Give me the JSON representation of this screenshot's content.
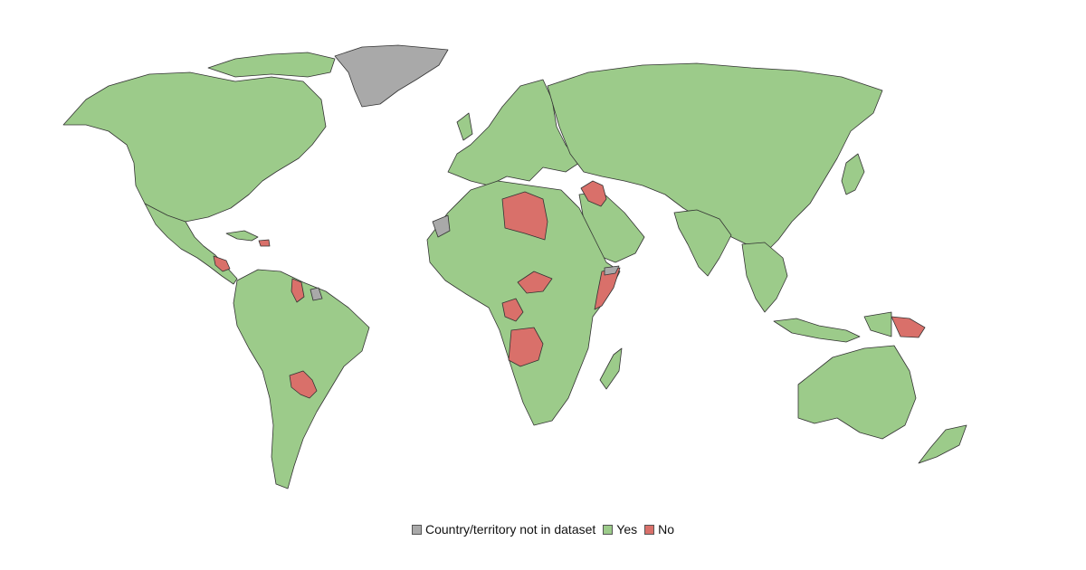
{
  "legend": {
    "items": [
      {
        "label": "Country/territory not in dataset",
        "color": "#a9a9a9"
      },
      {
        "label": "Yes",
        "color": "#9ccb8a"
      },
      {
        "label": "No",
        "color": "#d9706a"
      }
    ]
  },
  "colors": {
    "background": "#ffffff",
    "border": "#333333"
  },
  "regions": [
    {
      "id": "north-america",
      "status": "Yes"
    },
    {
      "id": "central-america",
      "status": "Yes"
    },
    {
      "id": "caribbean",
      "status": "Yes"
    },
    {
      "id": "greenland",
      "status": "Country/territory not in dataset"
    },
    {
      "id": "south-america",
      "status": "Yes"
    },
    {
      "id": "europe",
      "status": "Yes"
    },
    {
      "id": "russia-asia",
      "status": "Yes"
    },
    {
      "id": "arabia",
      "status": "Yes"
    },
    {
      "id": "india",
      "status": "Yes"
    },
    {
      "id": "africa",
      "status": "Yes"
    },
    {
      "id": "madagascar",
      "status": "Yes"
    },
    {
      "id": "southeast-asia",
      "status": "Yes"
    },
    {
      "id": "australia",
      "status": "Yes"
    },
    {
      "id": "new-zealand",
      "status": "Yes"
    },
    {
      "id": "japan",
      "status": "Yes"
    },
    {
      "id": "libya",
      "status": "No"
    },
    {
      "id": "iraq",
      "status": "No"
    },
    {
      "id": "somalia",
      "status": "No"
    },
    {
      "id": "central-african-republic",
      "status": "No"
    },
    {
      "id": "congo",
      "status": "No"
    },
    {
      "id": "angola",
      "status": "No"
    },
    {
      "id": "paraguay",
      "status": "No"
    },
    {
      "id": "guyana",
      "status": "No"
    },
    {
      "id": "haiti",
      "status": "No"
    },
    {
      "id": "nicaragua",
      "status": "No"
    },
    {
      "id": "papua-new-guinea",
      "status": "No"
    },
    {
      "id": "western-sahara",
      "status": "Country/territory not in dataset"
    },
    {
      "id": "french-guiana",
      "status": "Country/territory not in dataset"
    },
    {
      "id": "somaliland",
      "status": "Country/territory not in dataset"
    }
  ]
}
